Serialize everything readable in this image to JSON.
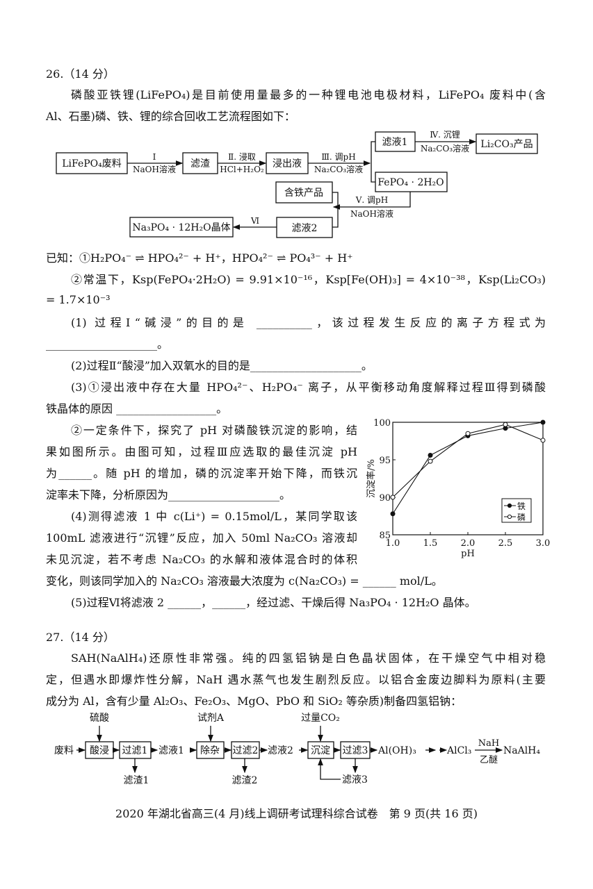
{
  "q26": {
    "title": "26.（14 分）",
    "intro": [
      "磷酸亚铁锂(LiFePO₄)是目前使用量最多的一种锂电池电极材料，LiFePO₄ 废料中(含",
      "Al、石墨)磷、铁、锂的综合回收工艺流程图如下："
    ],
    "flow": {
      "raw": "LiFePO₄废料",
      "s1_top": "Ⅰ",
      "s1_bot": "NaOH溶液",
      "residue": "滤渣",
      "s2_top": "Ⅱ. 浸取",
      "s2_bot": "HCl+H₂O₂",
      "leach": "浸出液",
      "s3_top": "Ⅲ. 调pH",
      "s3_bot": "Na₂CO₃溶液",
      "filtrate1": "滤液1",
      "s4_top": "Ⅳ. 沉锂",
      "s4_bot": "Na₂CO₃溶液",
      "li_product": "Li₂CO₃产品",
      "fepo4": "FePO₄ · 2H₂O",
      "fe_product": "含铁产品",
      "s5_top": "Ⅴ. 调pH",
      "s5_bot": "NaOH溶液",
      "filtrate2": "滤液2",
      "s6": "Ⅵ",
      "na3po4": "Na₃PO₄ · 12H₂O晶体"
    },
    "known": [
      "已知：①H₂PO₄⁻ ⇌ HPO₄²⁻ + H⁺，HPO₄²⁻ ⇌ PO₄³⁻ + H⁺",
      "②常温下，Ksp(FePO₄·2H₂O) = 9.91×10⁻¹⁶，Ksp[Fe(OH)₃] = 4×10⁻³⁸，Ksp(Li₂CO₃)",
      "= 1.7×10⁻³"
    ],
    "lines": [
      "(1) 过程Ⅰ“碱浸”的目的是 __________，该过程发生反应的离子方程式为",
      "____________________。",
      "(2)过程Ⅱ“酸浸”加入双氧水的目的是____________________。",
      "(3)①浸出液中存在大量 HPO₄²⁻、H₂PO₄⁻ 离子，从平衡移动角度解释过程Ⅲ得到磷酸",
      "铁晶体的原因 __________________。",
      "②一定条件下，探究了 pH 对磷酸铁沉淀的影响，结",
      "果如图所示。由图可知，过程Ⅲ应选取的最佳沉淀 pH",
      "为______。随 pH 的增加，磷的沉淀率开始下降，而铁沉",
      "淀率未下降，分析原因为____________________。",
      "(4)测得滤液 1 中 c(Li⁺) = 0.15mol/L，某同学取该",
      "100mL 滤液进行“沉锂”反应，加入 50ml Na₂CO₃ 溶液却",
      "未见沉淀，若不考虑 Na₂CO₃ 的水解和液体混合时的体积",
      "变化，则该同学加入的 Na₂CO₃ 溶液最大浓度为 c(Na₂CO₃) = ______ mol/L。",
      "(5)过程Ⅵ将滤液 2 ______，______，经过滤、干燥后得 Na₃PO₄ · 12H₂O 晶体。"
    ]
  },
  "chart_data": {
    "type": "line",
    "xlabel": "pH",
    "ylabel": "沉淀率/%",
    "xlim": [
      1.0,
      3.0
    ],
    "ylim": [
      85,
      100
    ],
    "xticks": [
      "1.0",
      "1.5",
      "2.0",
      "2.5",
      "3.0"
    ],
    "yticks": [
      "85",
      "90",
      "95",
      "100"
    ],
    "x": [
      1.0,
      1.5,
      2.0,
      2.5,
      3.0
    ],
    "series": [
      {
        "name": "铁",
        "marker": "filled",
        "values": [
          87.8,
          95.6,
          98.2,
          99.2,
          100
        ]
      },
      {
        "name": "磷",
        "marker": "open",
        "values": [
          90,
          94.8,
          98.5,
          99.7,
          97.6
        ]
      }
    ],
    "legend": "bottom-right",
    "grid": false
  },
  "q27": {
    "title": "27.（14 分）",
    "lines": [
      "SAH(NaAlH₄)还原性非常强。纯的四氢铝钠是白色晶状固体，在干燥空气中相对稳",
      "定，但遇水即爆炸性分解，NaH 遇水蒸气也发生剧烈反应。以铝合金废边脚料为原料(主要",
      "成分为 Al，含有少量 Al₂O₃、Fe₂O₃、MgO、PbO 和 SiO₂ 等杂质)制备四氢铝钠："
    ],
    "flow": {
      "waste": "废料",
      "acid": "硫酸",
      "leach": "酸浸",
      "filter1": "过滤1",
      "filtrate1": "滤液1",
      "residue1": "滤渣1",
      "reagent": "试剂A",
      "purify": "除杂",
      "filter2": "过滤2",
      "residue2": "滤渣2",
      "filtrate2": "滤液2",
      "co2": "过量CO₂",
      "precip": "沉淀",
      "filter3": "过滤3",
      "filtrate3": "滤液3",
      "aloh3": "Al(OH)₃",
      "dots": "······",
      "alcl3": "AlCl₃",
      "nah": "NaH",
      "ether": "乙醚",
      "naalh4": "NaAlH₄"
    }
  },
  "footer": "2020 年湖北省高三(4 月)线上调研考试理科综合试卷　第 9 页(共 16 页)"
}
